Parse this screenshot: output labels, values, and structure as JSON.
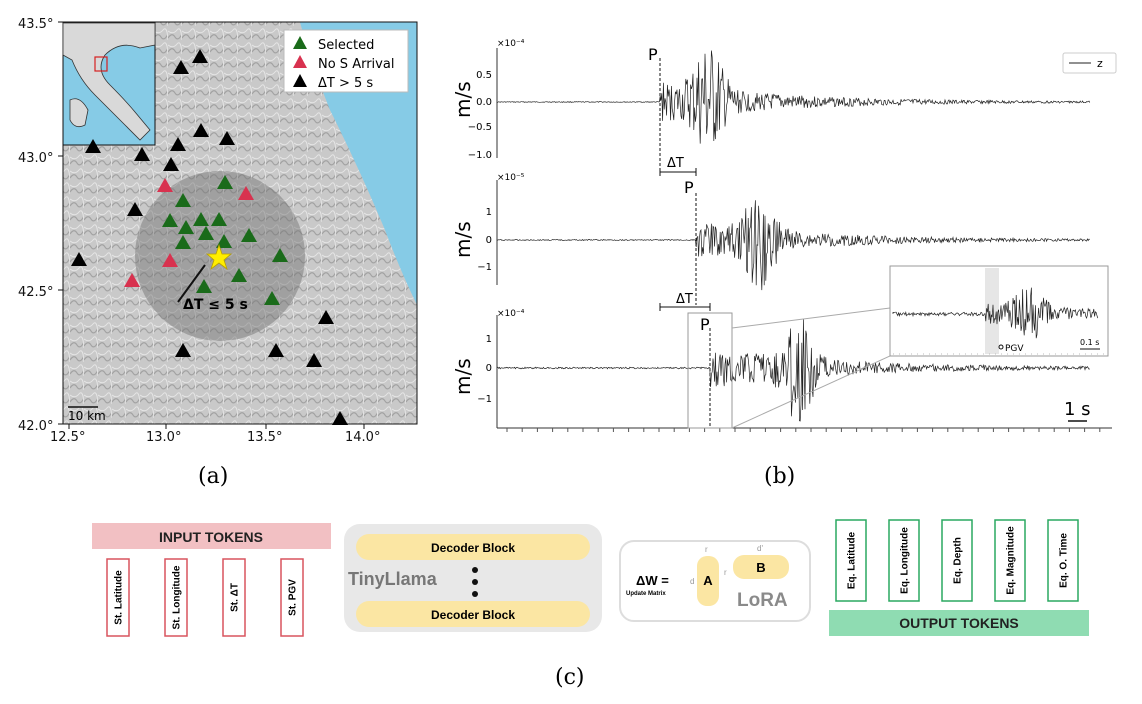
{
  "panel_a": {
    "caption": "(a)",
    "map": {
      "lat_ticks": [
        "43.5°",
        "43.0°",
        "42.5°",
        "42.0°"
      ],
      "lon_ticks": [
        "12.5°",
        "13.0°",
        "13.5°",
        "14.0°"
      ],
      "scale_label": "10 km",
      "radius_label": "ΔT ≤ 5 s",
      "legend": [
        {
          "label": "Selected",
          "color": "#1a6b1a"
        },
        {
          "label": "No S Arrival",
          "color": "#d8324f"
        },
        {
          "label": "ΔT > 5 s",
          "color": "#000000"
        }
      ]
    }
  },
  "panel_b": {
    "caption": "(b)",
    "legend_label": "z",
    "scale_bar_label": "1 s",
    "inset_label": "PGV",
    "inset_scale_label": "0.1 s",
    "traces": [
      {
        "ylabel": "m/s",
        "exponent": "×10⁻⁴",
        "ticks": [
          "0.5",
          "0.0",
          "−0.5",
          "−1.0"
        ],
        "phase": "P",
        "delta": "ΔT"
      },
      {
        "ylabel": "m/s",
        "exponent": "×10⁻⁵",
        "ticks": [
          "1",
          "0",
          "−1"
        ],
        "phase": "P",
        "delta": "ΔT"
      },
      {
        "ylabel": "m/s",
        "exponent": "×10⁻⁴",
        "ticks": [
          "1",
          "0",
          "−1"
        ],
        "phase": "P"
      }
    ]
  },
  "panel_c": {
    "caption": "(c)",
    "input_title": "INPUT TOKENS",
    "input_tokens": [
      "St. Latitude",
      "St. Longitude",
      "St. ΔT",
      "St. PGV"
    ],
    "model_name": "TinyLlama",
    "decoder_top": "Decoder Block",
    "decoder_bottom": "Decoder Block",
    "lora_eq": "ΔW =",
    "lora_eq_sub": "Update Matrix",
    "lora_a": "A",
    "lora_b": "B",
    "lora_r_top": "r",
    "lora_d_top": "d'",
    "lora_d_left": "d",
    "lora_r_left": "r",
    "lora_name": "LoRA",
    "output_tokens": [
      "Eq. Latitude",
      "Eq. Longitude",
      "Eq. Depth",
      "Eq. Magnitude",
      "Eq. O. Time"
    ],
    "output_title": "OUTPUT TOKENS",
    "colors": {
      "input": "#f2c0c3",
      "input_border": "#d9545e",
      "output": "#8fdcb2",
      "output_border": "#2aa860",
      "decoder": "#fbe6a3"
    }
  }
}
